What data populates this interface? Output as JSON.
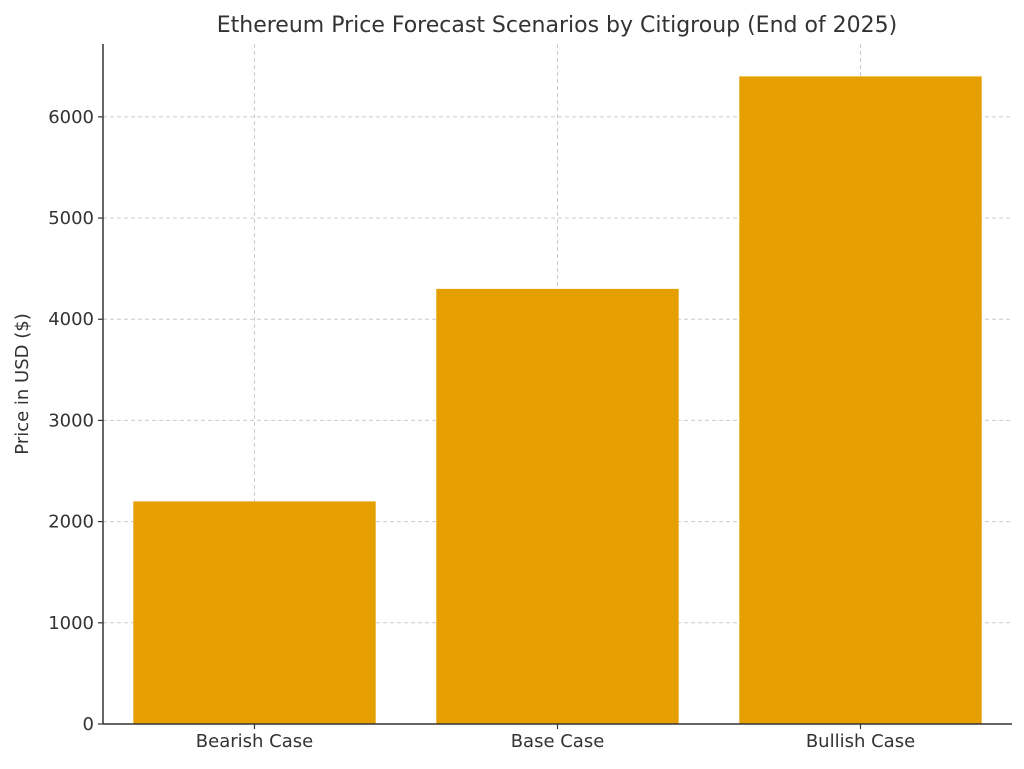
{
  "chart_data": {
    "type": "bar",
    "title": "Ethereum Price Forecast Scenarios by Citigroup (End of 2025)",
    "xlabel": "",
    "ylabel": "Price in USD ($)",
    "categories": [
      "Bearish Case",
      "Base Case",
      "Bullish Case"
    ],
    "values": [
      2200,
      4300,
      6400
    ],
    "ylim": [
      0,
      6720
    ],
    "yticks": [
      0,
      1000,
      2000,
      3000,
      4000,
      5000,
      6000
    ],
    "ytick_labels": [
      "0",
      "1000",
      "2000",
      "3000",
      "4000",
      "5000",
      "6000"
    ],
    "grid": true,
    "bar_color": "#E69F00",
    "grid_color": "#cccccc",
    "axis_color": "#333333"
  }
}
